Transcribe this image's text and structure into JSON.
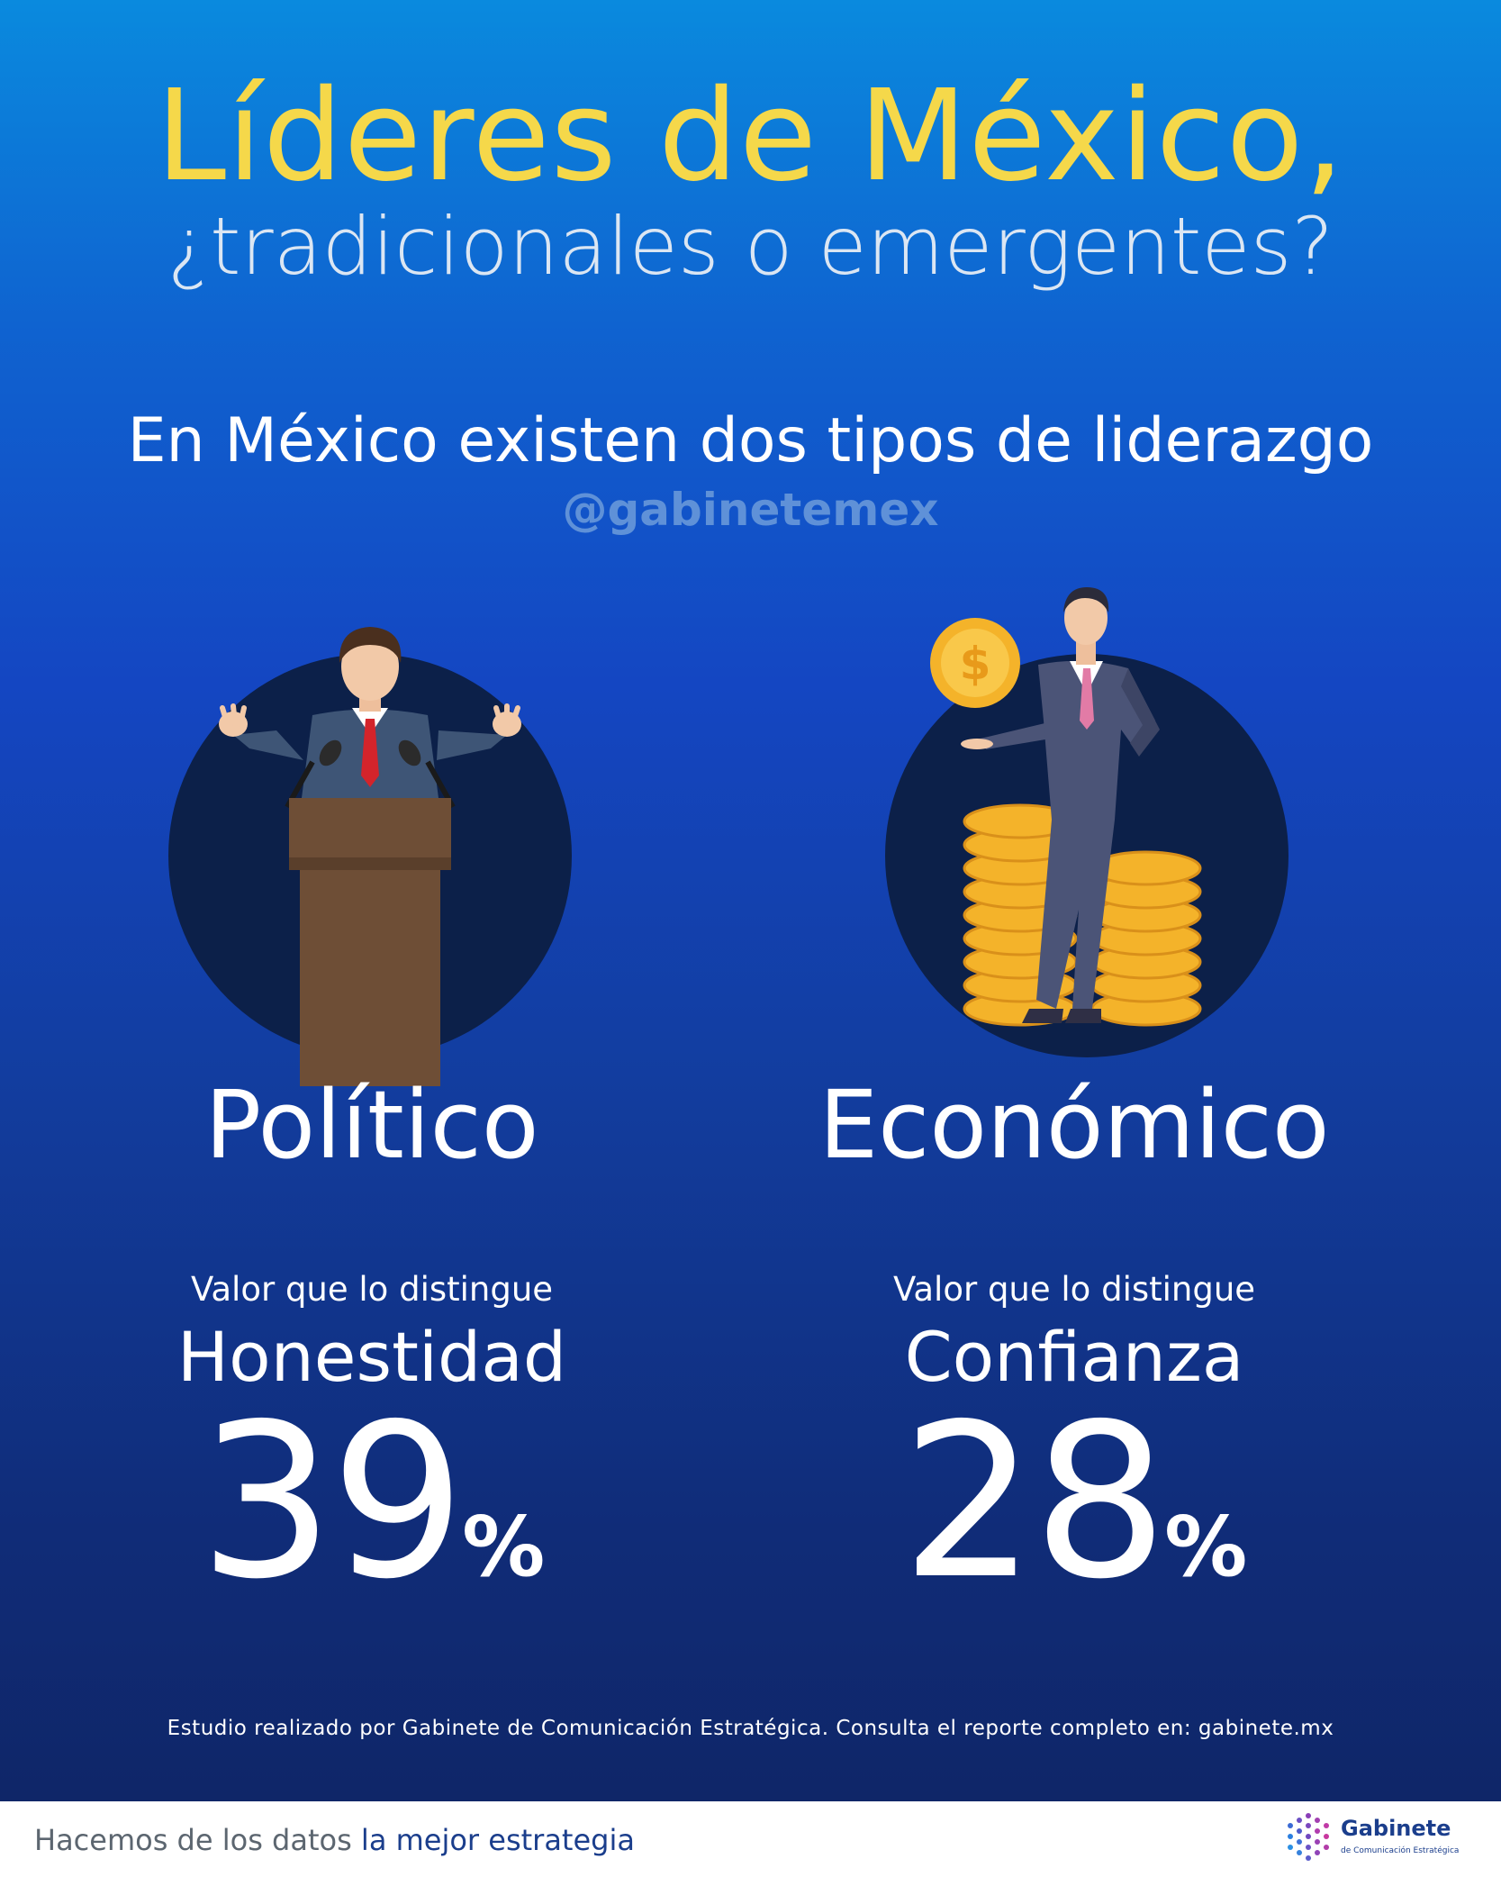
{
  "header": {
    "title": "Líderes de México,",
    "subtitle": "¿tradicionales o emergentes?"
  },
  "intro": {
    "text": "En México existen dos tipos de liderazgo",
    "handle": "@gabinetemex"
  },
  "leaders": [
    {
      "type": "Político",
      "value_caption": "Valor que lo distingue",
      "value_name": "Honestidad",
      "percent_number": "39",
      "percent_sign": "%",
      "percent": 39,
      "icon": "politician-podium-icon"
    },
    {
      "type": "Económico",
      "value_caption": "Valor que lo distingue",
      "value_name": "Confianza",
      "percent_number": "28",
      "percent_sign": "%",
      "percent": 28,
      "icon": "businessman-coins-icon"
    }
  ],
  "source": "Estudio realizado por Gabinete de Comunicación Estratégica. Consulta el reporte completo en: gabinete.mx",
  "footer": {
    "tagline_plain": "Hacemos de los datos ",
    "tagline_emphasis": "la mejor estrategia",
    "brand_name": "Gabinete",
    "brand_sub": "de Comunicación Estratégica",
    "logo_icon": "gabinete-logo-icon"
  },
  "colors": {
    "title_yellow": "#f5d84a",
    "background_top": "#0a8ade",
    "background_bottom": "#0f2668",
    "circle_navy": "#0c2049",
    "brand_blue": "#1b3e8c"
  }
}
